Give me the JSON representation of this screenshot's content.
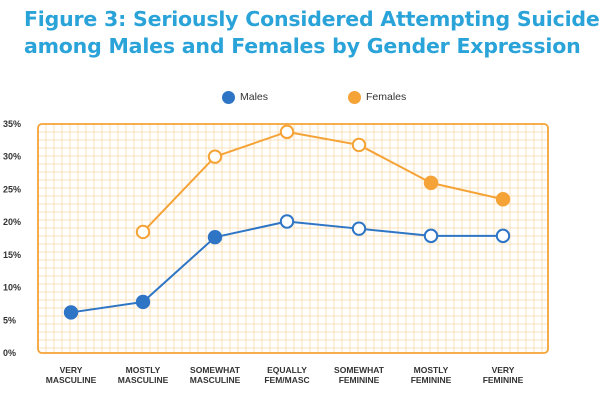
{
  "title_line1": "Figure 3: Seriously Considered Attempting Suicide",
  "title_line2": "among Males and Females by Gender Expression",
  "chart_data": {
    "type": "line",
    "categories": [
      [
        "VERY",
        "MASCULINE"
      ],
      [
        "MOSTLY",
        "MASCULINE"
      ],
      [
        "SOMEWHAT",
        "MASCULINE"
      ],
      [
        "EQUALLY",
        "FEM/MASC"
      ],
      [
        "SOMEWHAT",
        "FEMININE"
      ],
      [
        "MOSTLY",
        "FEMININE"
      ],
      [
        "VERY",
        "FEMININE"
      ]
    ],
    "yticks": [
      "0%",
      "5%",
      "10%",
      "15%",
      "20%",
      "25%",
      "30%",
      "35%"
    ],
    "ylim": [
      0,
      35
    ],
    "grid": true,
    "legend_position": "top",
    "series": [
      {
        "name": "Males",
        "color": "#2e75c6",
        "values": [
          6.2,
          7.8,
          17.7,
          20.1,
          19.0,
          17.9,
          17.9
        ],
        "filled": [
          true,
          true,
          true,
          false,
          false,
          false,
          false
        ]
      },
      {
        "name": "Females",
        "color": "#f5a336",
        "values": [
          null,
          18.5,
          30.0,
          33.8,
          31.8,
          26.0,
          23.5
        ],
        "filled": [
          false,
          false,
          false,
          false,
          false,
          true,
          true
        ]
      }
    ]
  }
}
